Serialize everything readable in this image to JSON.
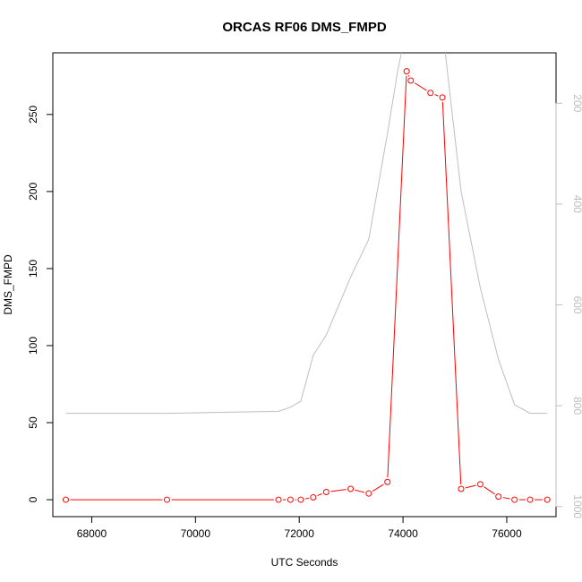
{
  "chart_data": {
    "type": "line",
    "title": "ORCAS RF06 DMS_FMPD",
    "xlabel": "UTC Seconds",
    "ylabel": "DMS_FMPD",
    "xlim": [
      67250,
      76950
    ],
    "ylim": [
      -11,
      290
    ],
    "x_ticks": [
      68000,
      70000,
      72000,
      74000,
      76000
    ],
    "x_tick_labels": [
      "68000",
      "70000",
      "72000",
      "74000",
      "76000"
    ],
    "y_ticks": [
      0,
      50,
      100,
      150,
      200,
      250
    ],
    "y_tick_labels": [
      "0",
      "50",
      "100",
      "150",
      "200",
      "250"
    ],
    "y2lim_inverted": [
      1020,
      100
    ],
    "y2_ticks": [
      200,
      400,
      600,
      800,
      1000
    ],
    "y2_tick_labels": [
      "200",
      "400",
      "600",
      "800",
      "1000"
    ],
    "grid": false,
    "colors": {
      "primary": "#ff0000",
      "secondary": "#bebebe",
      "axis": "#000000"
    },
    "series": [
      {
        "color": "#ff0000",
        "marker": "open-circle",
        "axis": "left",
        "x": [
          67500,
          69450,
          71600,
          71830,
          72030,
          72270,
          72520,
          72990,
          73340,
          73700,
          74070,
          74150,
          74530,
          74760,
          75120,
          75490,
          75840,
          76150,
          76450,
          76780
        ],
        "y": [
          0,
          0,
          0,
          0,
          0,
          1.5,
          5,
          7,
          4,
          11.5,
          278,
          272,
          264,
          261,
          7,
          10,
          2,
          0,
          0,
          0
        ]
      },
      {
        "color": "#bebebe",
        "marker": "none",
        "axis": "right",
        "x": [
          67500,
          69450,
          71600,
          71830,
          72030,
          72270,
          72520,
          72990,
          73340,
          73700,
          73900,
          74070,
          74530,
          74760,
          75120,
          75490,
          75840,
          76150,
          76450,
          76780
        ],
        "y": [
          815,
          815,
          811,
          803,
          791,
          700,
          660,
          545,
          470,
          260,
          135,
          50,
          50,
          50,
          375,
          566,
          708,
          798,
          815,
          815
        ]
      }
    ]
  }
}
